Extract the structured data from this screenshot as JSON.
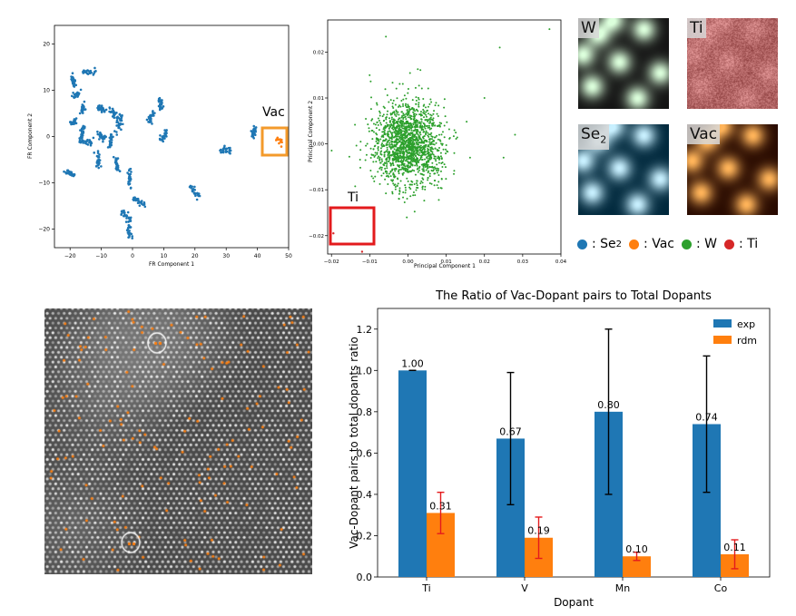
{
  "colors": {
    "blue": "#1f77b4",
    "orange": "#ff7f0e",
    "green": "#2ca02c",
    "red": "#d62728",
    "highlight_orange": "#f39a2b",
    "highlight_red": "#e31a1c"
  },
  "fr_plot": {
    "xlabel": "FR Component 1",
    "ylabel": "FR Component 2",
    "annotation": "Vac",
    "xticks": [
      "−20",
      "−10",
      "0",
      "10",
      "20",
      "30",
      "40",
      "50"
    ],
    "yticks": [
      "20",
      "10",
      "0",
      "−10",
      "−20"
    ]
  },
  "pc_plot": {
    "xlabel": "Principal Component 1",
    "ylabel": "Principal Component 2",
    "annotation": "Ti",
    "xticks": [
      "−0.02",
      "−0.01",
      "0.00",
      "0.01",
      "0.02",
      "0.03",
      "0.04"
    ],
    "yticks": [
      "0.02",
      "0.01",
      "0.00",
      "−0.01",
      "−0.02"
    ]
  },
  "tiles": [
    {
      "label": "W",
      "scheme": "green"
    },
    {
      "label": "Ti",
      "scheme": "red"
    },
    {
      "label_main": "Se",
      "label_sub": "2",
      "scheme": "blue"
    },
    {
      "label": "Vac",
      "scheme": "orange"
    }
  ],
  "legend": {
    "items": [
      {
        "color": "#1f77b4",
        "text_main": ": Se",
        "text_sub": "2"
      },
      {
        "color": "#ff7f0e",
        "text_main": ": Vac",
        "text_sub": ""
      },
      {
        "color": "#2ca02c",
        "text_main": ": W",
        "text_sub": ""
      },
      {
        "color": "#d62728",
        "text_main": ": Ti",
        "text_sub": ""
      }
    ]
  },
  "chart_data": [
    {
      "type": "scatter",
      "xlabel": "FR Component 1",
      "ylabel": "FR Component 2",
      "xlim": [
        -25,
        50
      ],
      "ylim": [
        -24,
        24
      ],
      "series": [
        {
          "name": "",
          "color": "#1f77b4",
          "clusters": [
            [
              -14,
              14
            ],
            [
              -19,
              12
            ],
            [
              -18,
              9
            ],
            [
              -16,
              6
            ],
            [
              -19,
              3
            ],
            [
              -16,
              1
            ],
            [
              -10,
              6
            ],
            [
              -6,
              5
            ],
            [
              -4,
              3
            ],
            [
              -10,
              0
            ],
            [
              -15,
              -1
            ],
            [
              -7,
              -1
            ],
            [
              9,
              7
            ],
            [
              6,
              4
            ],
            [
              10,
              0
            ],
            [
              -20,
              -8
            ],
            [
              -11,
              -5
            ],
            [
              -5,
              -6
            ],
            [
              -1,
              -9
            ],
            [
              2,
              -14
            ],
            [
              -2,
              -17
            ],
            [
              -1,
              -20
            ],
            [
              20,
              -12
            ],
            [
              30,
              -3
            ],
            [
              39,
              1
            ]
          ]
        },
        {
          "name": "",
          "color": "#ff7f0e",
          "clusters": [
            [
              47,
              -1
            ]
          ]
        }
      ]
    },
    {
      "type": "scatter",
      "xlabel": "Principal Component 1",
      "ylabel": "Principal Component 2",
      "xlim": [
        -0.021,
        0.04
      ],
      "ylim": [
        -0.024,
        0.027
      ],
      "series": [
        {
          "name": "",
          "color": "#2ca02c",
          "center": [
            0.0,
            0.0
          ],
          "spread": [
            0.0045,
            0.0045
          ],
          "count": 1600,
          "outliers": [
            [
              0.037,
              0.025
            ],
            [
              0.024,
              0.021
            ],
            [
              0.02,
              0.01
            ],
            [
              0.028,
              0.002
            ],
            [
              0.025,
              -0.003
            ]
          ]
        },
        {
          "name": "",
          "color": "#d62728",
          "points": [
            [
              -0.0195,
              -0.0195
            ],
            [
              -0.012,
              -0.0235
            ]
          ]
        }
      ]
    },
    {
      "type": "bar",
      "title": "The Ratio of Vac-Dopant pairs to Total Dopants",
      "xlabel": "Dopant",
      "ylabel": "Vac-Dopant pairs to total dopants ratio",
      "categories": [
        "Ti",
        "V",
        "Mn",
        "Co"
      ],
      "ylim": [
        0,
        1.3
      ],
      "yticks": [
        "0.0",
        "0.2",
        "0.4",
        "0.6",
        "0.8",
        "1.0",
        "1.2"
      ],
      "legend_position": "top-right",
      "series": [
        {
          "name": "exp",
          "color": "#1f77b4",
          "values": [
            1.0,
            0.67,
            0.8,
            0.74
          ],
          "errors": [
            0.0,
            0.32,
            0.4,
            0.33
          ],
          "labels": [
            "1.00",
            "0.67",
            "0.80",
            "0.74"
          ]
        },
        {
          "name": "rdm",
          "color": "#ff7f0e",
          "values": [
            0.31,
            0.19,
            0.1,
            0.11
          ],
          "errors": [
            0.1,
            0.1,
            0.02,
            0.07
          ],
          "labels": [
            "0.31",
            "0.19",
            "0.10",
            "0.11"
          ]
        }
      ]
    }
  ]
}
